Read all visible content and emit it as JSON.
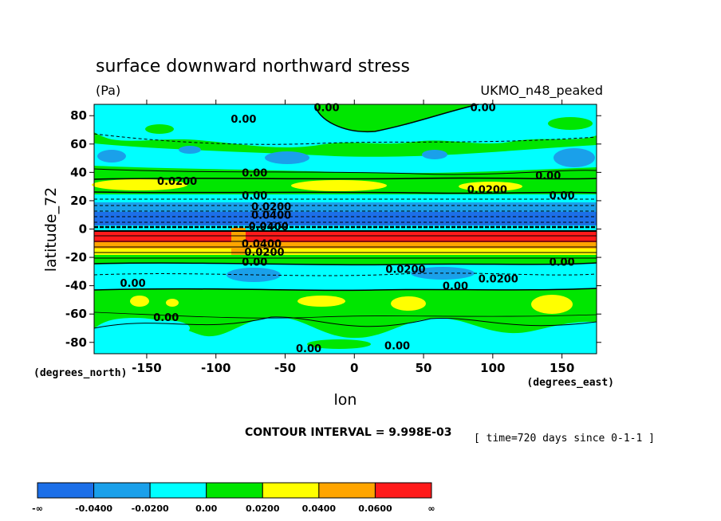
{
  "chart_data": {
    "type": "heatmap",
    "title": "surface downward northward stress",
    "units": "(Pa)",
    "model": "UKMO_n48_peaked",
    "xlabel": "lon",
    "ylabel": "latitude_72",
    "x_unit": "(degrees_east)",
    "y_unit": "(degrees_north)",
    "xlim": [
      -188,
      175
    ],
    "ylim": [
      -88,
      88
    ],
    "x_ticks": [
      -150,
      -100,
      -50,
      0,
      50,
      100,
      150
    ],
    "y_ticks": [
      80,
      60,
      40,
      20,
      0,
      -20,
      -40,
      -60,
      -80
    ],
    "contour_interval": "CONTOUR INTERVAL = 9.998E-03",
    "time_label": "[ time=720 days since 0-1-1 ]",
    "colorbar": {
      "labels": [
        "-∞",
        "-0.0400",
        "-0.0200",
        "0.00",
        "0.0200",
        "0.0400",
        "0.0600",
        "∞"
      ],
      "colors": [
        "#1c6fe8",
        "#1aa0ea",
        "#00ffff",
        "#00e600",
        "#ffff00",
        "#ffa500",
        "#ff1a1a"
      ]
    },
    "contour_labels": [
      {
        "text": "0.00",
        "lon": -20,
        "lat": 86
      },
      {
        "text": "0.00",
        "lon": 93,
        "lat": 86
      },
      {
        "text": "0.00",
        "lon": -80,
        "lat": 78
      },
      {
        "text": "0.0200",
        "lon": -128,
        "lat": 34
      },
      {
        "text": "0.00",
        "lon": -72,
        "lat": 40
      },
      {
        "text": "0.00",
        "lon": 140,
        "lat": 38
      },
      {
        "text": "0.0200",
        "lon": 96,
        "lat": 28
      },
      {
        "text": "0.00",
        "lon": -72,
        "lat": 24
      },
      {
        "text": "0.00",
        "lon": 150,
        "lat": 24
      },
      {
        "text": "0.0200",
        "lon": -60,
        "lat": 16
      },
      {
        "text": "0.0400",
        "lon": -60,
        "lat": 10
      },
      {
        "text": "0.0400",
        "lon": -62,
        "lat": 2
      },
      {
        "text": "0.0400",
        "lon": -67,
        "lat": -10
      },
      {
        "text": "0.0200",
        "lon": -65,
        "lat": -16
      },
      {
        "text": "0.00",
        "lon": -72,
        "lat": -23
      },
      {
        "text": "0.00",
        "lon": 150,
        "lat": -23
      },
      {
        "text": "0.0200",
        "lon": 37,
        "lat": -28
      },
      {
        "text": "0.00",
        "lon": 73,
        "lat": -40
      },
      {
        "text": "0.0200",
        "lon": 104,
        "lat": -35
      },
      {
        "text": "0.00",
        "lon": -160,
        "lat": -38
      },
      {
        "text": "0.00",
        "lon": -136,
        "lat": -62
      },
      {
        "text": "0.00",
        "lon": -33,
        "lat": -84
      },
      {
        "text": "0.00",
        "lon": 31,
        "lat": -82
      }
    ]
  }
}
